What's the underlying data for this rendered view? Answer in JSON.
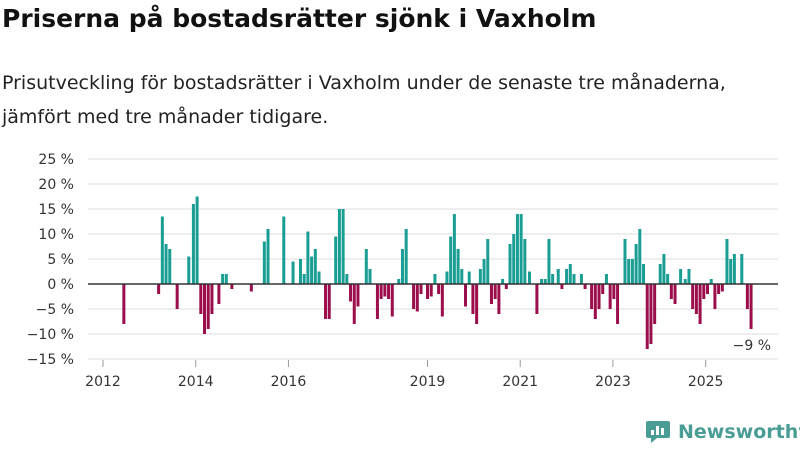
{
  "title": "Priserna på bostadsrätter sjönk i Vaxholm",
  "subtitle": "Prisutveckling för bostadsrätter i Vaxholm under de senaste tre månaderna, jämfört med tre månader tidigare.",
  "brand": "Newsworthy",
  "colors": {
    "positive": "#1a9e94",
    "negative": "#9b0d4b",
    "grid": "#dddddd",
    "zero": "#333333",
    "brand": "#4a9d95"
  },
  "chart_data": {
    "type": "bar",
    "title": "Priserna på bostadsrätter sjönk i Vaxholm",
    "unit": "%",
    "x_start": 2012,
    "x_end": 2026,
    "ylim": [
      -15,
      25
    ],
    "ytick_values": [
      25,
      20,
      15,
      10,
      5,
      0,
      -5,
      -10,
      -15
    ],
    "ytick_labels": [
      "25 %",
      "20 %",
      "15 %",
      "10 %",
      "5 %",
      "0 %",
      "−5 %",
      "−10 %",
      "−15 %"
    ],
    "xtick_values": [
      2012,
      2014,
      2016,
      2019,
      2021,
      2023,
      2025
    ],
    "xtick_labels": [
      "2012",
      "2014",
      "2016",
      "2019",
      "2021",
      "2023",
      "2025"
    ],
    "last_value_label": "−9 %",
    "series": [
      {
        "name": "Prisutveckling",
        "points": [
          {
            "x": 2012.45,
            "v": -8
          },
          {
            "x": 2013.2,
            "v": -2
          },
          {
            "x": 2013.28,
            "v": 13.5
          },
          {
            "x": 2013.36,
            "v": 8
          },
          {
            "x": 2013.44,
            "v": 7
          },
          {
            "x": 2013.52,
            "v": 0
          },
          {
            "x": 2013.6,
            "v": -5
          },
          {
            "x": 2013.85,
            "v": 5.5
          },
          {
            "x": 2013.95,
            "v": 16
          },
          {
            "x": 2014.03,
            "v": 17.5
          },
          {
            "x": 2014.11,
            "v": -6
          },
          {
            "x": 2014.19,
            "v": -10
          },
          {
            "x": 2014.27,
            "v": -9
          },
          {
            "x": 2014.35,
            "v": -6
          },
          {
            "x": 2014.5,
            "v": -4
          },
          {
            "x": 2014.58,
            "v": 2
          },
          {
            "x": 2014.66,
            "v": 2
          },
          {
            "x": 2014.78,
            "v": -1
          },
          {
            "x": 2015.2,
            "v": -1.5
          },
          {
            "x": 2015.48,
            "v": 8.5
          },
          {
            "x": 2015.56,
            "v": 11
          },
          {
            "x": 2015.9,
            "v": 13.5
          },
          {
            "x": 2016.1,
            "v": 4.5
          },
          {
            "x": 2016.26,
            "v": 5
          },
          {
            "x": 2016.34,
            "v": 2
          },
          {
            "x": 2016.42,
            "v": 10.5
          },
          {
            "x": 2016.5,
            "v": 5.5
          },
          {
            "x": 2016.58,
            "v": 7
          },
          {
            "x": 2016.66,
            "v": 2.5
          },
          {
            "x": 2016.8,
            "v": -7
          },
          {
            "x": 2016.88,
            "v": -7
          },
          {
            "x": 2017.02,
            "v": 9.5
          },
          {
            "x": 2017.1,
            "v": 15
          },
          {
            "x": 2017.18,
            "v": 15
          },
          {
            "x": 2017.26,
            "v": 2
          },
          {
            "x": 2017.34,
            "v": -3.5
          },
          {
            "x": 2017.42,
            "v": -8
          },
          {
            "x": 2017.5,
            "v": -4.5
          },
          {
            "x": 2017.68,
            "v": 7
          },
          {
            "x": 2017.76,
            "v": 3
          },
          {
            "x": 2017.92,
            "v": -7
          },
          {
            "x": 2018.0,
            "v": -3
          },
          {
            "x": 2018.08,
            "v": -2.5
          },
          {
            "x": 2018.16,
            "v": -3
          },
          {
            "x": 2018.24,
            "v": -6.5
          },
          {
            "x": 2018.38,
            "v": 1
          },
          {
            "x": 2018.46,
            "v": 7
          },
          {
            "x": 2018.54,
            "v": 11
          },
          {
            "x": 2018.7,
            "v": -5
          },
          {
            "x": 2018.78,
            "v": -5.5
          },
          {
            "x": 2018.86,
            "v": -2
          },
          {
            "x": 2019.0,
            "v": -3
          },
          {
            "x": 2019.08,
            "v": -2.5
          },
          {
            "x": 2019.16,
            "v": 2
          },
          {
            "x": 2019.24,
            "v": -2
          },
          {
            "x": 2019.32,
            "v": -6.5
          },
          {
            "x": 2019.42,
            "v": 2.5
          },
          {
            "x": 2019.5,
            "v": 9.5
          },
          {
            "x": 2019.58,
            "v": 14
          },
          {
            "x": 2019.66,
            "v": 7
          },
          {
            "x": 2019.74,
            "v": 3
          },
          {
            "x": 2019.82,
            "v": -4.5
          },
          {
            "x": 2019.9,
            "v": 2.5
          },
          {
            "x": 2019.98,
            "v": -6
          },
          {
            "x": 2020.06,
            "v": -8
          },
          {
            "x": 2020.14,
            "v": 3
          },
          {
            "x": 2020.22,
            "v": 5
          },
          {
            "x": 2020.3,
            "v": 9
          },
          {
            "x": 2020.38,
            "v": -4
          },
          {
            "x": 2020.46,
            "v": -3
          },
          {
            "x": 2020.54,
            "v": -6
          },
          {
            "x": 2020.62,
            "v": 1
          },
          {
            "x": 2020.7,
            "v": -1
          },
          {
            "x": 2020.78,
            "v": 8
          },
          {
            "x": 2020.86,
            "v": 10
          },
          {
            "x": 2020.94,
            "v": 14
          },
          {
            "x": 2021.02,
            "v": 14
          },
          {
            "x": 2021.1,
            "v": 9
          },
          {
            "x": 2021.2,
            "v": 2.5
          },
          {
            "x": 2021.36,
            "v": -6
          },
          {
            "x": 2021.46,
            "v": 1
          },
          {
            "x": 2021.54,
            "v": 1
          },
          {
            "x": 2021.62,
            "v": 9
          },
          {
            "x": 2021.7,
            "v": 2
          },
          {
            "x": 2021.82,
            "v": 3
          },
          {
            "x": 2021.9,
            "v": -1
          },
          {
            "x": 2022.0,
            "v": 3
          },
          {
            "x": 2022.08,
            "v": 4
          },
          {
            "x": 2022.16,
            "v": 2
          },
          {
            "x": 2022.32,
            "v": 2
          },
          {
            "x": 2022.4,
            "v": -1
          },
          {
            "x": 2022.54,
            "v": -5
          },
          {
            "x": 2022.62,
            "v": -7
          },
          {
            "x": 2022.7,
            "v": -5
          },
          {
            "x": 2022.78,
            "v": -2
          },
          {
            "x": 2022.86,
            "v": 2
          },
          {
            "x": 2022.94,
            "v": -5
          },
          {
            "x": 2023.02,
            "v": -3
          },
          {
            "x": 2023.1,
            "v": -8
          },
          {
            "x": 2023.26,
            "v": 9
          },
          {
            "x": 2023.34,
            "v": 5
          },
          {
            "x": 2023.42,
            "v": 5
          },
          {
            "x": 2023.5,
            "v": 8
          },
          {
            "x": 2023.58,
            "v": 11
          },
          {
            "x": 2023.66,
            "v": 4
          },
          {
            "x": 2023.74,
            "v": -13
          },
          {
            "x": 2023.82,
            "v": -12
          },
          {
            "x": 2023.9,
            "v": -8
          },
          {
            "x": 2024.02,
            "v": 4
          },
          {
            "x": 2024.1,
            "v": 6
          },
          {
            "x": 2024.18,
            "v": 2
          },
          {
            "x": 2024.26,
            "v": -3
          },
          {
            "x": 2024.34,
            "v": -4
          },
          {
            "x": 2024.46,
            "v": 3
          },
          {
            "x": 2024.56,
            "v": 1
          },
          {
            "x": 2024.64,
            "v": 3
          },
          {
            "x": 2024.72,
            "v": -5
          },
          {
            "x": 2024.8,
            "v": -6
          },
          {
            "x": 2024.88,
            "v": -8
          },
          {
            "x": 2024.96,
            "v": -3
          },
          {
            "x": 2025.04,
            "v": -2
          },
          {
            "x": 2025.12,
            "v": 1
          },
          {
            "x": 2025.2,
            "v": -5
          },
          {
            "x": 2025.28,
            "v": -2
          },
          {
            "x": 2025.36,
            "v": -1.5
          },
          {
            "x": 2025.46,
            "v": 9
          },
          {
            "x": 2025.54,
            "v": 5
          },
          {
            "x": 2025.62,
            "v": 6
          },
          {
            "x": 2025.78,
            "v": 6
          },
          {
            "x": 2025.9,
            "v": -5
          },
          {
            "x": 2025.98,
            "v": -9
          }
        ]
      }
    ]
  }
}
